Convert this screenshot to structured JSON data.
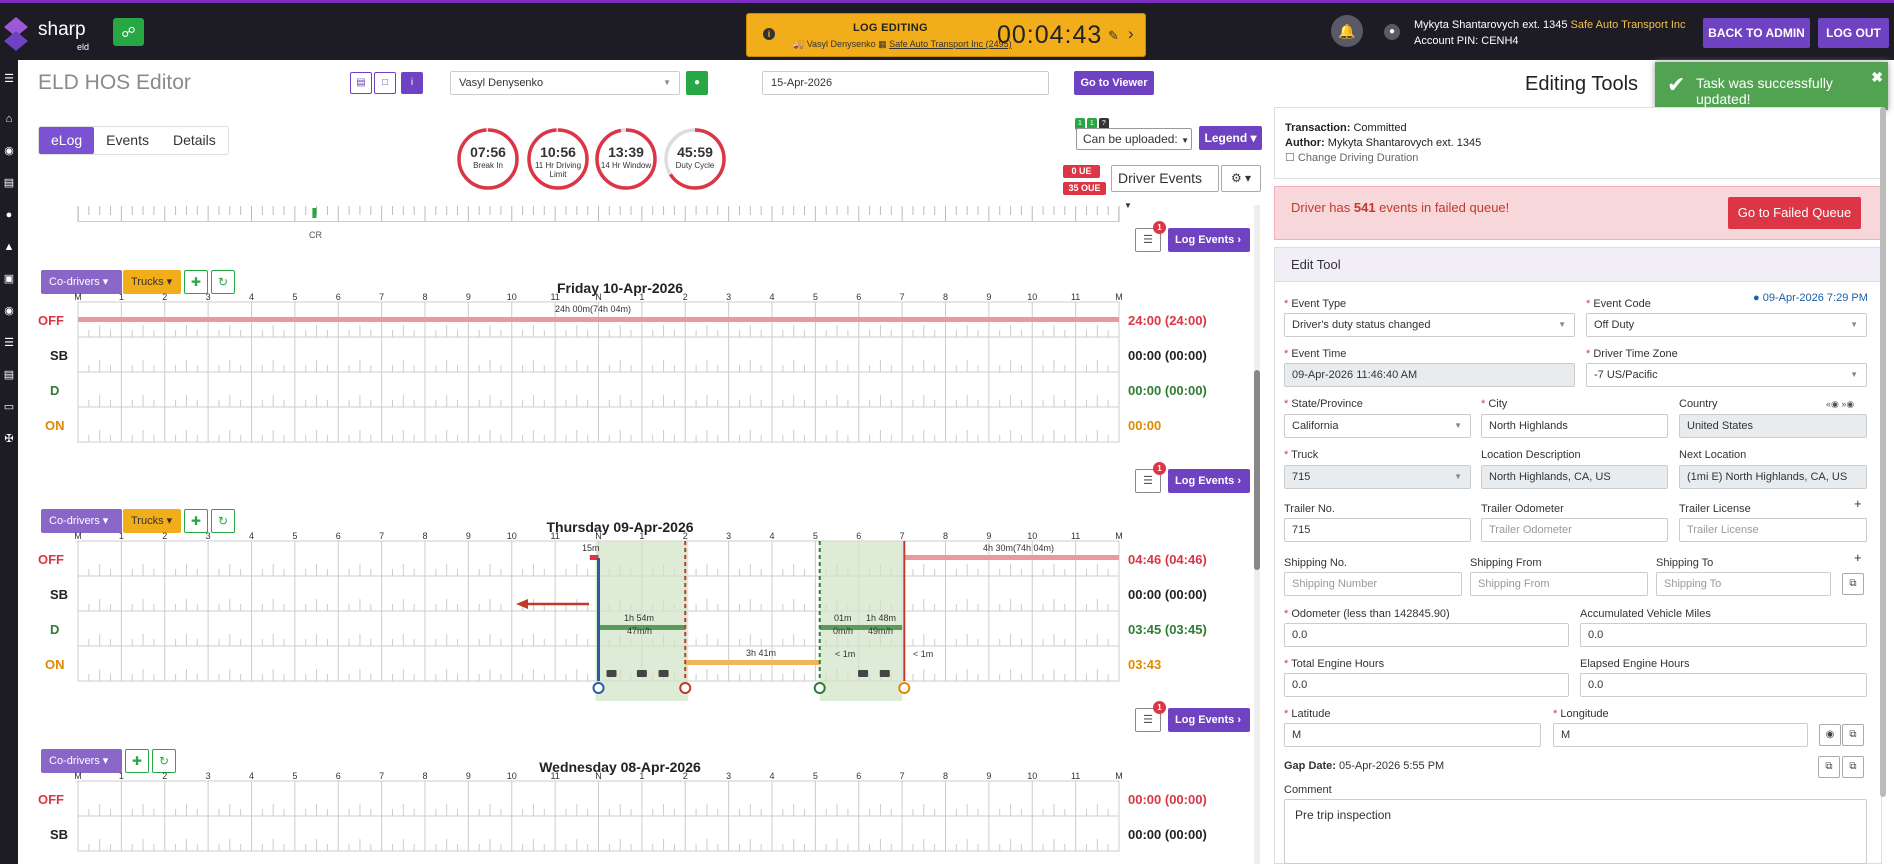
{
  "brand": {
    "name": "sharp",
    "sub": "eld",
    "accent": "#7a2dc1",
    "purple": "#6f42c1"
  },
  "log_editing": {
    "title": "LOG EDITING",
    "driver": "Vasyl Denysenko",
    "company": "Safe Auto Transport Inc (2495)",
    "timer": "00:04:43"
  },
  "user": {
    "name": "Mykyta Shantarovych ext. 1345",
    "company": "Safe Auto Transport Inc",
    "pin": "Account PIN: CENH4"
  },
  "topbar": {
    "back_label": "BACK TO ADMIN",
    "logout_label": "LOG OUT"
  },
  "page": {
    "title": "ELD HOS Editor",
    "driver_select": "Vasyl Denysenko",
    "date": "15-Apr-2026",
    "go_viewer": "Go to Viewer"
  },
  "tabs": [
    "eLog",
    "Events",
    "Details"
  ],
  "gauges": [
    {
      "value": "07:56",
      "label": "Break In",
      "fill": 0.99,
      "color": "#dc3545"
    },
    {
      "value": "10:56",
      "label": "11 Hr Driving Limit",
      "fill": 0.99,
      "color": "#dc3545"
    },
    {
      "value": "13:39",
      "label": "14 Hr Window",
      "fill": 0.97,
      "color": "#dc3545"
    },
    {
      "value": "45:59",
      "label": "Duty Cycle",
      "fill": 0.66,
      "color": "#dc3545"
    }
  ],
  "controls": {
    "badges": [
      "1",
      "1",
      "?"
    ],
    "can_upload": "Can be uploaded:",
    "legend": "Legend",
    "ue": "0 UE",
    "oue": "35 OUE",
    "device": "Driver Events"
  },
  "cr_label": "CR",
  "day_buttons": {
    "codrivers": "Co-drivers",
    "trucks": "Trucks",
    "log_events": "Log Events",
    "chat_count": "1"
  },
  "axis_labels": [
    "M",
    "1",
    "2",
    "3",
    "4",
    "5",
    "6",
    "7",
    "8",
    "9",
    "10",
    "11",
    "N",
    "1",
    "2",
    "3",
    "4",
    "5",
    "6",
    "7",
    "8",
    "9",
    "10",
    "11",
    "M"
  ],
  "status_labels": [
    "OFF",
    "SB",
    "D",
    "ON"
  ],
  "status_colors": {
    "OFF": "#dc3545",
    "SB": "#222222",
    "D": "#2e7d32",
    "ON": "#e08a00"
  },
  "days": [
    {
      "title": "Friday 10-Apr-2026",
      "totals": [
        "24:00 (24:00)",
        "00:00 (00:00)",
        "00:00 (00:00)",
        "00:00"
      ],
      "labels": [
        "24h 00m(74h 04m)"
      ]
    },
    {
      "title": "Thursday 09-Apr-2026",
      "totals": [
        "04:46 (04:46)",
        "00:00 (00:00)",
        "03:45 (03:45)",
        "03:43"
      ],
      "labels": [
        "15m",
        "4h 30m(74h 04m)",
        "1h 54m",
        "47m/h",
        "3h 41m",
        "01m",
        "0m/h",
        "< 1m",
        "1h 48m",
        "49m/h",
        "< 1m"
      ]
    },
    {
      "title": "Wednesday 08-Apr-2026",
      "totals": [
        "00:00 (00:00)",
        "00:00 (00:00)"
      ]
    }
  ],
  "right": {
    "editing_tools": "Editing Tools",
    "toast": "Task was successfully updated!",
    "transaction": "Committed",
    "transaction_label": "Transaction:",
    "author": "Mykyta Shantarovych ext. 1345",
    "author_label": "Author:",
    "change_driving": "Change Driving Duration",
    "failed_pre": "Driver has ",
    "failed_count": "541",
    "failed_post": " events in failed queue!",
    "failed_btn": "Go to Failed Queue",
    "edit_tool": "Edit Tool",
    "event_date": "09-Apr-2026 7:29 PM"
  },
  "form": {
    "event_type": {
      "label": "Event Type",
      "value": "Driver's duty status changed"
    },
    "event_code": {
      "label": "Event Code",
      "value": "Off Duty"
    },
    "event_time": {
      "label": "Event Time",
      "value": "09-Apr-2026 11:46:40 AM"
    },
    "timezone": {
      "label": "Driver Time Zone",
      "value": "-7 US/Pacific"
    },
    "state": {
      "label": "State/Province",
      "value": "California"
    },
    "city": {
      "label": "City",
      "value": "North Highlands"
    },
    "country": {
      "label": "Country",
      "value": "United States"
    },
    "truck": {
      "label": "Truck",
      "value": "715"
    },
    "loc_desc": {
      "label": "Location Description",
      "value": "North Highlands, CA, US"
    },
    "next_loc": {
      "label": "Next Location",
      "value": "(1mi E) North Highlands, CA, US"
    },
    "trailer_no": {
      "label": "Trailer No.",
      "value": "715"
    },
    "trailer_odo": {
      "label": "Trailer Odometer",
      "placeholder": "Trailer Odometer"
    },
    "trailer_lic": {
      "label": "Trailer License",
      "placeholder": "Trailer License"
    },
    "ship_no": {
      "label": "Shipping No.",
      "placeholder": "Shipping Number"
    },
    "ship_from": {
      "label": "Shipping From",
      "placeholder": "Shipping From"
    },
    "ship_to": {
      "label": "Shipping To",
      "placeholder": "Shipping To"
    },
    "odometer": {
      "label": "Odometer (less than 142845.90)",
      "value": "0.0"
    },
    "acc_miles": {
      "label": "Accumulated Vehicle Miles",
      "value": "0.0"
    },
    "engine_hours": {
      "label": "Total Engine Hours",
      "value": "0.0"
    },
    "elapsed_hours": {
      "label": "Elapsed Engine Hours",
      "value": "0.0"
    },
    "latitude": {
      "label": "Latitude",
      "value": "M"
    },
    "longitude": {
      "label": "Longitude",
      "value": "M"
    },
    "gap_label": "Gap Date:",
    "gap_value": "05-Apr-2026 5:55 PM",
    "comment_label": "Comment",
    "comment_value": "Pre trip inspection"
  }
}
